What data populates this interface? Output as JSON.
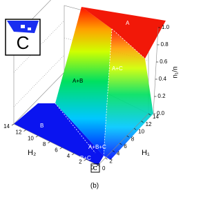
{
  "chart_data": {
    "type": "surface3d",
    "caption": "(b)",
    "x_label": "H₁",
    "y_label": "H₂",
    "z_label": "n₁/n",
    "xlim": [
      0,
      14
    ],
    "ylim": [
      0,
      14
    ],
    "zlim": [
      0,
      1
    ],
    "xticks": [
      0,
      2,
      4,
      6,
      8,
      10,
      12,
      14
    ],
    "yticks": [
      0,
      2,
      4,
      6,
      8,
      10,
      12,
      14
    ],
    "zticks": [
      {
        "value": 0,
        "label": "0.0"
      },
      {
        "value": 0.2,
        "label": "0.2"
      },
      {
        "value": 0.4,
        "label": "0.4"
      },
      {
        "value": 0.6,
        "label": "0.6"
      },
      {
        "value": 0.8,
        "label": "0.8"
      },
      {
        "value": 1,
        "label": "1.0"
      }
    ],
    "region_labels": [
      "A",
      "A+C",
      "A+B",
      "B",
      "A+B+C",
      "B+C",
      "C"
    ],
    "inset_label": "C"
  }
}
